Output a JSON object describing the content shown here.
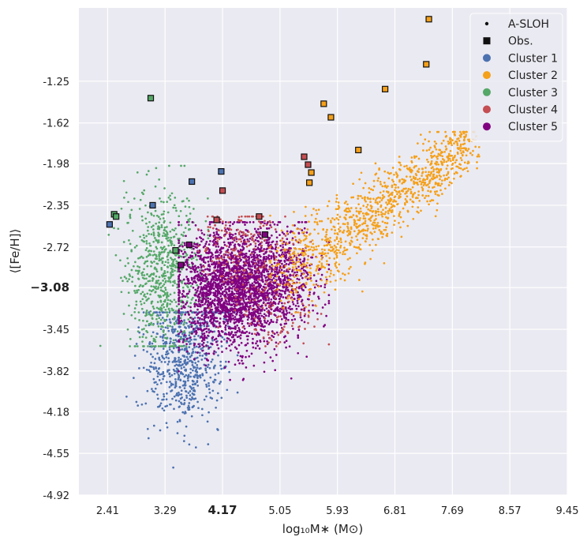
{
  "chart_data": {
    "type": "scatter",
    "xlabel": "log₁₀M∗ (M⊙)",
    "ylabel": "⟨[Fe/H]⟩",
    "xlim": [
      1.97,
      9.45
    ],
    "ylim": [
      -4.92,
      -0.6
    ],
    "x_ticks": [
      {
        "value": 2.41,
        "label": "2.41",
        "bold": false
      },
      {
        "value": 3.29,
        "label": "3.29",
        "bold": false
      },
      {
        "value": 4.17,
        "label": "4.17",
        "bold": true
      },
      {
        "value": 5.05,
        "label": "5.05",
        "bold": false
      },
      {
        "value": 5.93,
        "label": "5.93",
        "bold": false
      },
      {
        "value": 6.81,
        "label": "6.81",
        "bold": false
      },
      {
        "value": 7.69,
        "label": "7.69",
        "bold": false
      },
      {
        "value": 8.57,
        "label": "8.57",
        "bold": false
      },
      {
        "value": 9.45,
        "label": "9.45",
        "bold": false
      }
    ],
    "y_ticks": [
      {
        "value": -1.25,
        "label": "-1.25",
        "bold": false
      },
      {
        "value": -1.62,
        "label": "-1.62",
        "bold": false
      },
      {
        "value": -1.98,
        "label": "-1.98",
        "bold": false
      },
      {
        "value": -2.35,
        "label": "-2.35",
        "bold": false
      },
      {
        "value": -2.72,
        "label": "-2.72",
        "bold": false
      },
      {
        "value": -3.08,
        "label": "−3.08",
        "bold": true
      },
      {
        "value": -3.45,
        "label": "-3.45",
        "bold": false
      },
      {
        "value": -3.82,
        "label": "-3.82",
        "bold": false
      },
      {
        "value": -4.18,
        "label": "-4.18",
        "bold": false
      },
      {
        "value": -4.55,
        "label": "-4.55",
        "bold": false
      },
      {
        "value": -4.92,
        "label": "-4.92",
        "bold": false
      }
    ],
    "grid": true,
    "legend_position": "top-right",
    "legend": [
      {
        "label": "A-SLOH",
        "marker": "dot",
        "color": "#111111"
      },
      {
        "label": "Obs.",
        "marker": "square",
        "color": "#111111"
      },
      {
        "label": "Cluster 1",
        "marker": "circle",
        "color": "#4c72b0"
      },
      {
        "label": "Cluster 2",
        "marker": "circle",
        "color": "#f5a01a"
      },
      {
        "label": "Cluster 3",
        "marker": "circle",
        "color": "#55a868"
      },
      {
        "label": "Cluster 4",
        "marker": "circle",
        "color": "#c44e52"
      },
      {
        "label": "Cluster 5",
        "marker": "circle",
        "color": "#800080"
      }
    ],
    "simulated_clusters": [
      {
        "name": "Cluster 1",
        "color": "#4c72b0",
        "n": 700,
        "cores": [
          {
            "x": 3.6,
            "y": -3.7,
            "sx": 0.3,
            "sy": 0.3,
            "w": 1
          }
        ],
        "bounds": {
          "x": [
            2.7,
            4.4
          ],
          "y": [
            -4.7,
            -3.3
          ]
        }
      },
      {
        "name": "Cluster 3",
        "color": "#55a868",
        "n": 700,
        "cores": [
          {
            "x": 3.25,
            "y": -2.95,
            "sx": 0.28,
            "sy": 0.38,
            "w": 1
          }
        ],
        "bounds": {
          "x": [
            2.0,
            3.95
          ],
          "y": [
            -3.6,
            -2.0
          ]
        }
      },
      {
        "name": "Cluster 5",
        "color": "#800080",
        "n": 2800,
        "cores": [
          {
            "x": 4.25,
            "y": -3.1,
            "sx": 0.38,
            "sy": 0.26,
            "w": 0.7
          },
          {
            "x": 4.95,
            "y": -3.0,
            "sx": 0.35,
            "sy": 0.24,
            "w": 0.3
          }
        ],
        "bounds": {
          "x": [
            3.5,
            5.8
          ],
          "y": [
            -3.9,
            -2.5
          ]
        }
      },
      {
        "name": "Cluster 4",
        "color": "#c44e52",
        "n": 300,
        "cores": [
          {
            "x": 4.5,
            "y": -2.7,
            "sx": 0.35,
            "sy": 0.18,
            "w": 0.6
          },
          {
            "x": 5.0,
            "y": -3.3,
            "sx": 0.35,
            "sy": 0.2,
            "w": 0.4
          }
        ],
        "bounds": {
          "x": [
            3.8,
            5.8
          ],
          "y": [
            -3.6,
            -2.45
          ]
        }
      },
      {
        "name": "Cluster 2",
        "color": "#f5a01a",
        "n": 1100,
        "line": {
          "x0": 5.2,
          "y0": -2.95,
          "x1": 7.95,
          "y1": -1.8
        },
        "spread_x": 0.25,
        "spread_y": 0.18,
        "bounds": {
          "x": [
            4.9,
            8.1
          ],
          "y": [
            -3.3,
            -1.7
          ]
        }
      }
    ],
    "observations": [
      {
        "x": 7.33,
        "y": -0.7,
        "cluster": "Cluster 2"
      },
      {
        "x": 7.29,
        "y": -1.1,
        "cluster": "Cluster 2"
      },
      {
        "x": 6.66,
        "y": -1.32,
        "cluster": "Cluster 2"
      },
      {
        "x": 5.72,
        "y": -1.45,
        "cluster": "Cluster 2"
      },
      {
        "x": 5.83,
        "y": -1.57,
        "cluster": "Cluster 2"
      },
      {
        "x": 6.25,
        "y": -1.86,
        "cluster": "Cluster 2"
      },
      {
        "x": 5.42,
        "y": -1.92,
        "cluster": "Cluster 4"
      },
      {
        "x": 5.48,
        "y": -1.99,
        "cluster": "Cluster 4"
      },
      {
        "x": 5.53,
        "y": -2.06,
        "cluster": "Cluster 2"
      },
      {
        "x": 5.5,
        "y": -2.15,
        "cluster": "Cluster 2"
      },
      {
        "x": 3.07,
        "y": -1.4,
        "cluster": "Cluster 3"
      },
      {
        "x": 4.15,
        "y": -2.05,
        "cluster": "Cluster 1"
      },
      {
        "x": 3.7,
        "y": -2.14,
        "cluster": "Cluster 1"
      },
      {
        "x": 4.17,
        "y": -2.22,
        "cluster": "Cluster 4"
      },
      {
        "x": 3.1,
        "y": -2.35,
        "cluster": "Cluster 1"
      },
      {
        "x": 2.51,
        "y": -2.43,
        "cluster": "Cluster 3"
      },
      {
        "x": 2.54,
        "y": -2.45,
        "cluster": "Cluster 3"
      },
      {
        "x": 2.44,
        "y": -2.52,
        "cluster": "Cluster 1"
      },
      {
        "x": 4.73,
        "y": -2.45,
        "cluster": "Cluster 4"
      },
      {
        "x": 4.08,
        "y": -2.48,
        "cluster": "Cluster 4"
      },
      {
        "x": 4.82,
        "y": -2.61,
        "cluster": "Cluster 5"
      },
      {
        "x": 3.66,
        "y": -2.7,
        "cluster": "Cluster 5"
      },
      {
        "x": 3.45,
        "y": -2.75,
        "cluster": "Cluster 3"
      },
      {
        "x": 3.53,
        "y": -2.88,
        "cluster": "Cluster 5"
      }
    ]
  }
}
